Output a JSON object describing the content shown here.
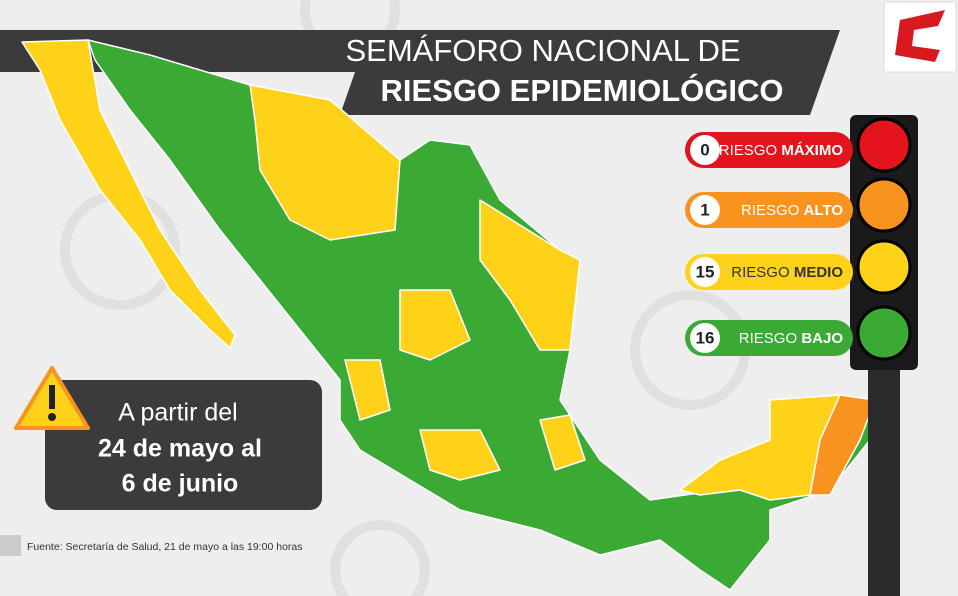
{
  "header": {
    "title_line1": "SEMÁFORO NACIONAL DE",
    "title_line2": "RIESGO EPIDEMIOLÓGICO"
  },
  "legend": [
    {
      "count": 0,
      "label": "RIESGO",
      "level": "MÁXIMO",
      "color": "#e3141b",
      "text_color": "#ffffff"
    },
    {
      "count": 1,
      "label": "RIESGO",
      "level": "ALTO",
      "color": "#f7931e",
      "text_color": "#ffffff"
    },
    {
      "count": 15,
      "label": "RIESGO",
      "level": "MEDIO",
      "color": "#ffd21a",
      "text_color": "#333333"
    },
    {
      "count": 16,
      "label": "RIESGO",
      "level": "BAJO",
      "color": "#3aaa35",
      "text_color": "#ffffff"
    }
  ],
  "notice": {
    "lines": [
      "A partir del",
      "24 de mayo al",
      "6 de junio"
    ]
  },
  "source": "Fuente: Secretaría de Salud, 21 de mayo a las 19:00 horas"
}
